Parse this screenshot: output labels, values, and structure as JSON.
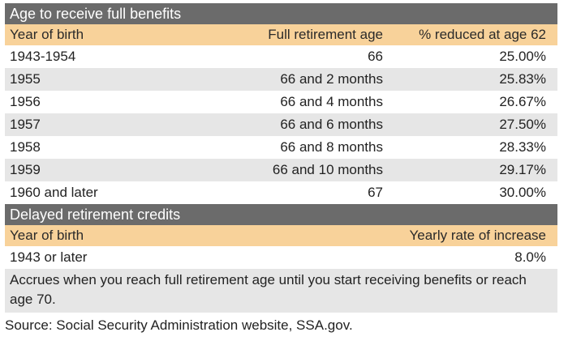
{
  "section1": {
    "title": "Age to receive full benefits",
    "headers": [
      "Year of birth",
      "Full retirement age",
      "% reduced at age 62"
    ],
    "rows": [
      [
        "1943-1954",
        "66",
        "25.00%"
      ],
      [
        "1955",
        "66 and 2 months",
        "25.83%"
      ],
      [
        "1956",
        "66 and 4 months",
        "26.67%"
      ],
      [
        "1957",
        "66 and 6 months",
        "27.50%"
      ],
      [
        "1958",
        "66 and 8 months",
        "28.33%"
      ],
      [
        "1959",
        "66 and 10 months",
        "29.17%"
      ],
      [
        "1960 and later",
        "67",
        "30.00%"
      ]
    ]
  },
  "section2": {
    "title": "Delayed retirement credits",
    "headers": [
      "Year of birth",
      "Yearly rate of increase"
    ],
    "rows": [
      [
        "1943 or later",
        "8.0%"
      ]
    ],
    "note": "Accrues when you reach full retirement age until you start receiving benefits or reach age 70."
  },
  "source": "Source: Social Security Administration website, SSA.gov.",
  "colors": {
    "title_bar": "#6b6b6b",
    "header_bg": "#f8d29a",
    "stripe": "#e6e6e6"
  }
}
